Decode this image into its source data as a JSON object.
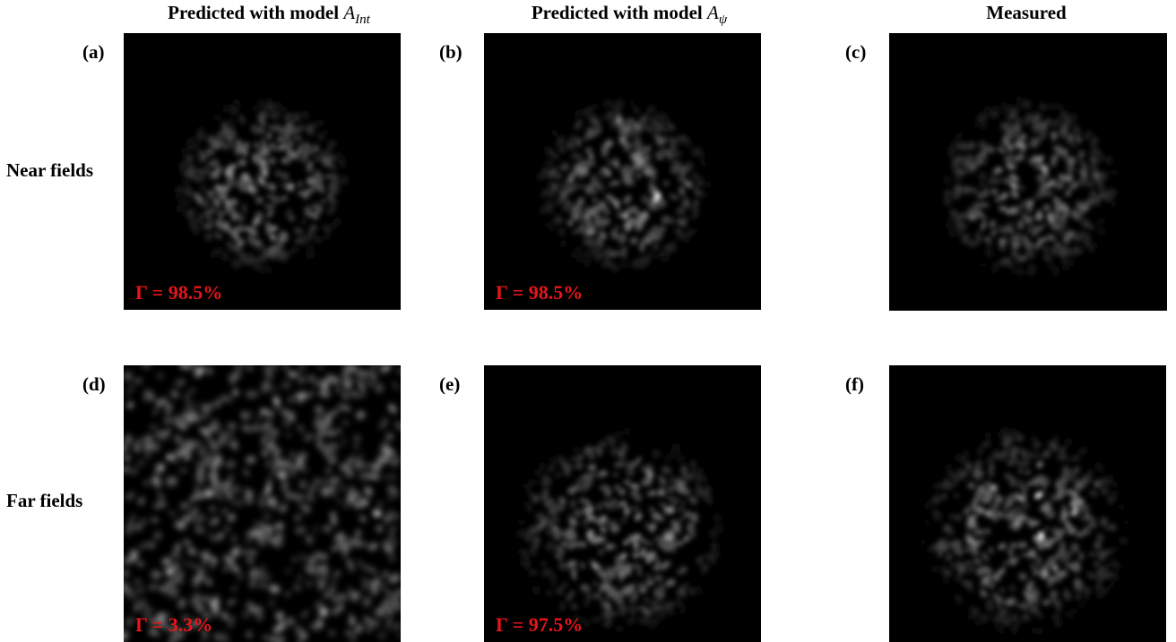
{
  "column_headers": [
    {
      "text": "Predicted with model",
      "symbol": "A",
      "subscript": "Int"
    },
    {
      "text": "Predicted with model",
      "symbol": "A",
      "subscript": "ψ"
    },
    {
      "text": "Measured"
    }
  ],
  "row_labels": [
    "Near fields",
    "Far fields"
  ],
  "panels": [
    {
      "label": "(a)",
      "annotation": "Γ = 98.5%"
    },
    {
      "label": "(b)",
      "annotation": "Γ = 98.5%"
    },
    {
      "label": "(c)"
    },
    {
      "label": "(d)",
      "annotation": "Γ = 3.3%"
    },
    {
      "label": "(e)",
      "annotation": "Γ = 97.5%"
    },
    {
      "label": "(f)"
    }
  ]
}
